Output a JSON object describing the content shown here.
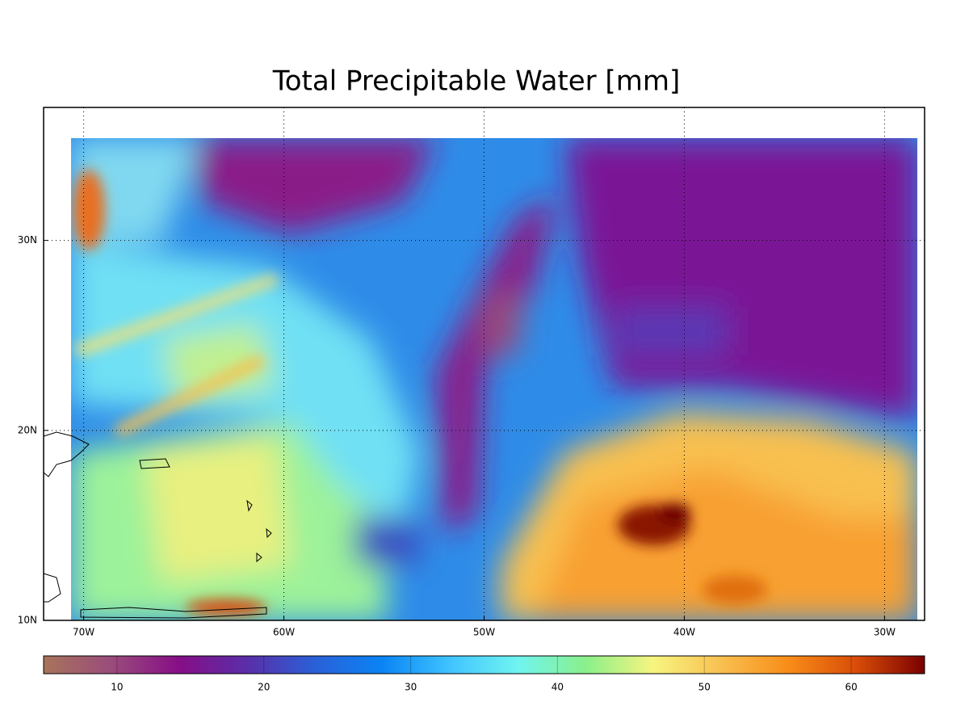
{
  "chart_data": {
    "type": "map",
    "title": "Total Precipitable Water [mm]",
    "xlim": [
      -72,
      -28
    ],
    "ylim": [
      10,
      37
    ],
    "xticks": [
      {
        "value": -70,
        "label": "70W"
      },
      {
        "value": -60,
        "label": "60W"
      },
      {
        "value": -50,
        "label": "50W"
      },
      {
        "value": -40,
        "label": "40W"
      },
      {
        "value": -30,
        "label": "30W"
      }
    ],
    "yticks": [
      {
        "value": 10,
        "label": "10N"
      },
      {
        "value": 20,
        "label": "20N"
      },
      {
        "value": 30,
        "label": "30N"
      }
    ],
    "grid": true,
    "colorbar": {
      "lim": [
        5,
        65
      ],
      "ticks": [
        10,
        20,
        30,
        40,
        50,
        60
      ],
      "colors": [
        "#a8745a",
        "#9a4c7c",
        "#860e86",
        "#5a2ea8",
        "#2a60d8",
        "#0a84f4",
        "#40c4ff",
        "#70f4f0",
        "#8af08a",
        "#f8f480",
        "#f8c050",
        "#f88c18",
        "#d84c08",
        "#7a0000"
      ]
    }
  }
}
